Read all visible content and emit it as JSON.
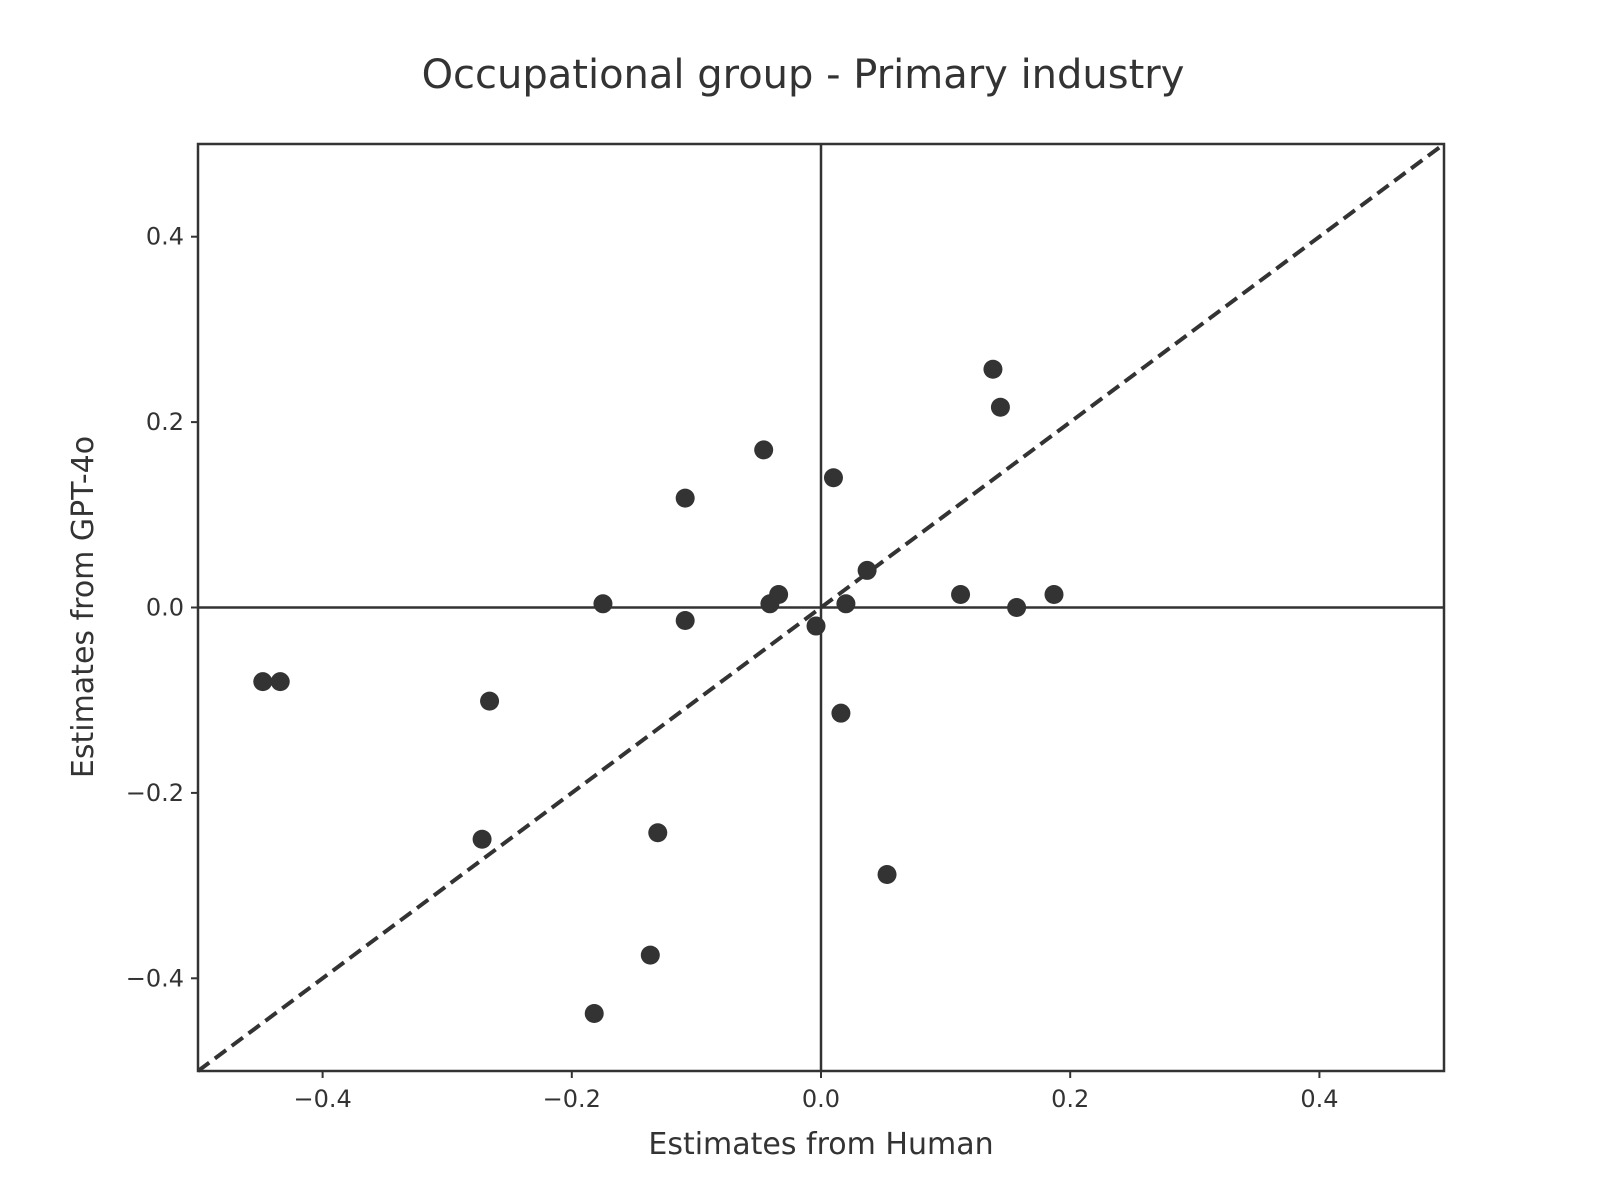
{
  "chart_data": {
    "type": "scatter",
    "title": "Occupational group - Primary industry",
    "xlabel": "Estimates from Human",
    "ylabel": "Estimates from GPT-4o",
    "xlim": [
      -0.5,
      0.5
    ],
    "ylim": [
      -0.5,
      0.5
    ],
    "xticks": [
      -0.4,
      -0.2,
      0.0,
      0.2,
      0.4
    ],
    "xtick_labels": [
      "−0.4",
      "−0.2",
      "0.0",
      "0.2",
      "0.4"
    ],
    "yticks": [
      -0.4,
      -0.2,
      0.0,
      0.2,
      0.4
    ],
    "ytick_labels": [
      "−0.4",
      "−0.2",
      "0.0",
      "0.2",
      "0.4"
    ],
    "grid": false,
    "reference_lines": {
      "horizontal_zero": true,
      "vertical_zero": true,
      "diagonal_identity": "dashed"
    },
    "marker_color": "#333333",
    "points": [
      {
        "x": -0.448,
        "y": -0.08
      },
      {
        "x": -0.434,
        "y": -0.08
      },
      {
        "x": -0.272,
        "y": -0.25
      },
      {
        "x": -0.266,
        "y": -0.101
      },
      {
        "x": -0.182,
        "y": -0.438
      },
      {
        "x": -0.175,
        "y": 0.004
      },
      {
        "x": -0.137,
        "y": -0.375
      },
      {
        "x": -0.131,
        "y": -0.243
      },
      {
        "x": -0.109,
        "y": 0.118
      },
      {
        "x": -0.109,
        "y": -0.014
      },
      {
        "x": -0.046,
        "y": 0.17
      },
      {
        "x": -0.041,
        "y": 0.004
      },
      {
        "x": -0.034,
        "y": 0.014
      },
      {
        "x": -0.004,
        "y": -0.02
      },
      {
        "x": 0.01,
        "y": 0.14
      },
      {
        "x": 0.016,
        "y": -0.114
      },
      {
        "x": 0.02,
        "y": 0.004
      },
      {
        "x": 0.037,
        "y": 0.04
      },
      {
        "x": 0.053,
        "y": -0.288
      },
      {
        "x": 0.112,
        "y": 0.014
      },
      {
        "x": 0.138,
        "y": 0.257
      },
      {
        "x": 0.144,
        "y": 0.216
      },
      {
        "x": 0.157,
        "y": 0.0
      },
      {
        "x": 0.187,
        "y": 0.014
      }
    ]
  }
}
